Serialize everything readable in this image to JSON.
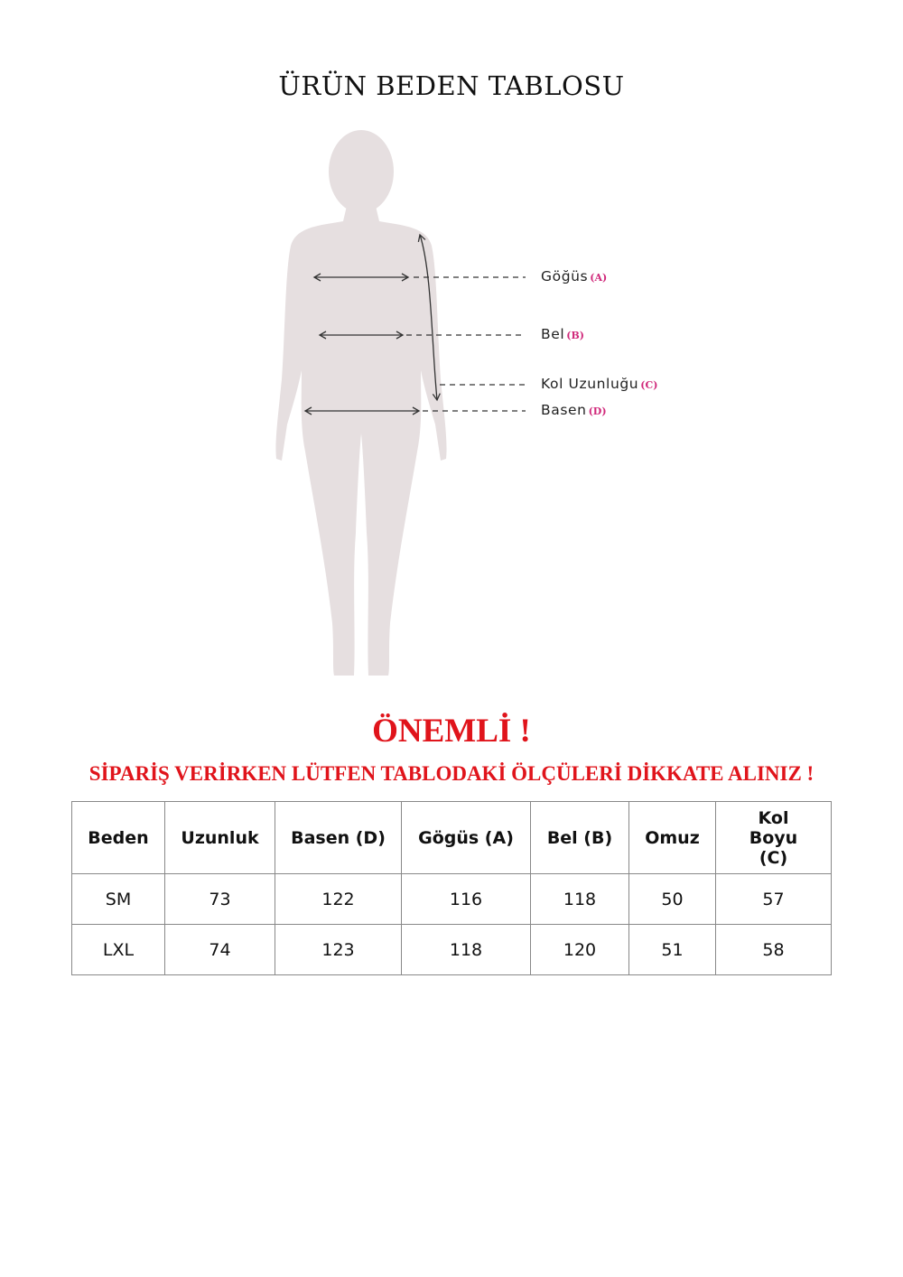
{
  "title": "ÜRÜN BEDEN TABLOSU",
  "figure_labels": [
    {
      "name": "Göğüs",
      "code": "(A)"
    },
    {
      "name": "Bel",
      "code": "(B)"
    },
    {
      "name": "Kol Uzunluğu",
      "code": "(C)"
    },
    {
      "name": "Basen",
      "code": "(D)"
    }
  ],
  "colors": {
    "warning": "#e0141b",
    "code": "#d0287a",
    "silhouette": "#e6dfe0"
  },
  "important": "ÖNEMLİ !",
  "warning": "SİPARİŞ VERİRKEN LÜTFEN TABLODAKİ ÖLÇÜLERİ DİKKATE ALINIZ !",
  "table": {
    "headers": [
      "Beden",
      "Uzunluk",
      "Basen (D)",
      "Gögüs (A)",
      "Bel (B)",
      "Omuz",
      "Kol Boyu (C)"
    ],
    "rows": [
      [
        "SM",
        "73",
        "122",
        "116",
        "118",
        "50",
        "57"
      ],
      [
        "LXL",
        "74",
        "123",
        "118",
        "120",
        "51",
        "58"
      ]
    ]
  }
}
